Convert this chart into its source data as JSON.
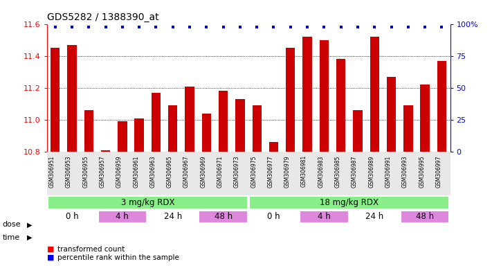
{
  "title": "GDS5282 / 1388390_at",
  "samples": [
    "GSM306951",
    "GSM306953",
    "GSM306955",
    "GSM306957",
    "GSM306959",
    "GSM306961",
    "GSM306963",
    "GSM306965",
    "GSM306967",
    "GSM306969",
    "GSM306971",
    "GSM306973",
    "GSM306975",
    "GSM306977",
    "GSM306979",
    "GSM306981",
    "GSM306983",
    "GSM306985",
    "GSM306987",
    "GSM306989",
    "GSM306991",
    "GSM306993",
    "GSM306995",
    "GSM306997"
  ],
  "values": [
    11.45,
    11.47,
    11.06,
    10.81,
    10.99,
    11.01,
    11.17,
    11.09,
    11.21,
    11.04,
    11.18,
    11.13,
    11.09,
    10.86,
    11.45,
    11.52,
    11.5,
    11.38,
    11.06,
    11.52,
    11.27,
    11.09,
    11.22,
    11.37
  ],
  "ylim": [
    10.8,
    11.6
  ],
  "yticks": [
    10.8,
    11.0,
    11.2,
    11.4,
    11.6
  ],
  "bar_color": "#cc0000",
  "dot_color": "#0000cc",
  "bar_bottom": 10.8,
  "dose_labels": [
    "3 mg/kg RDX",
    "18 mg/kg RDX"
  ],
  "dose_color": "#88ee88",
  "time_labels": [
    "0 h",
    "4 h",
    "24 h",
    "48 h",
    "0 h",
    "4 h",
    "24 h",
    "48 h"
  ],
  "time_colors": [
    "#ffffff",
    "#dd88dd",
    "#ffffff",
    "#dd88dd",
    "#ffffff",
    "#dd88dd",
    "#ffffff",
    "#dd88dd"
  ],
  "legend_red": "transformed count",
  "legend_blue": "percentile rank within the sample",
  "right_yticks": [
    0,
    25,
    50,
    75,
    100
  ],
  "right_ylabels": [
    "0",
    "25",
    "50",
    "75",
    "100%"
  ],
  "bg_color": "#e8e8e8"
}
